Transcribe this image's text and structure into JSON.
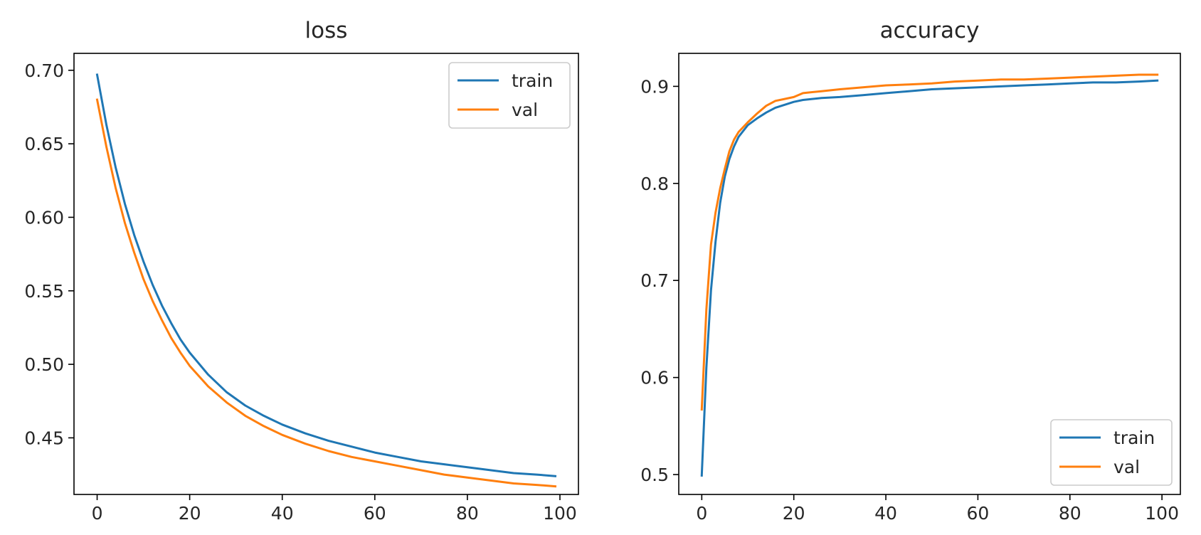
{
  "colors": {
    "train": "#1f77b4",
    "val": "#ff7f0e"
  },
  "chart_data": [
    {
      "type": "line",
      "title": "loss",
      "xlabel": "",
      "ylabel": "",
      "xlim": [
        -5,
        104
      ],
      "ylim": [
        0.4115,
        0.7115
      ],
      "xticks": [
        0,
        20,
        40,
        60,
        80,
        100
      ],
      "yticks": [
        0.45,
        0.5,
        0.55,
        0.6,
        0.65,
        0.7
      ],
      "ytick_labels": [
        "0.45",
        "0.50",
        "0.55",
        "0.60",
        "0.65",
        "0.70"
      ],
      "grid": false,
      "legend": "upper right",
      "x": [
        0,
        2,
        4,
        6,
        8,
        10,
        12,
        14,
        16,
        18,
        20,
        24,
        28,
        32,
        36,
        40,
        45,
        50,
        55,
        60,
        65,
        70,
        75,
        80,
        85,
        90,
        95,
        99
      ],
      "series": [
        {
          "name": "train",
          "values": [
            0.697,
            0.663,
            0.634,
            0.609,
            0.588,
            0.57,
            0.554,
            0.54,
            0.528,
            0.517,
            0.508,
            0.493,
            0.481,
            0.472,
            0.465,
            0.459,
            0.453,
            0.448,
            0.444,
            0.44,
            0.437,
            0.434,
            0.432,
            0.43,
            0.428,
            0.426,
            0.425,
            0.424
          ]
        },
        {
          "name": "val",
          "values": [
            0.68,
            0.648,
            0.62,
            0.596,
            0.576,
            0.558,
            0.543,
            0.53,
            0.518,
            0.508,
            0.499,
            0.485,
            0.474,
            0.465,
            0.458,
            0.452,
            0.446,
            0.441,
            0.437,
            0.434,
            0.431,
            0.428,
            0.425,
            0.423,
            0.421,
            0.419,
            0.418,
            0.417
          ]
        }
      ]
    },
    {
      "type": "line",
      "title": "accuracy",
      "xlabel": "",
      "ylabel": "",
      "xlim": [
        -5,
        104
      ],
      "ylim": [
        0.4795,
        0.934
      ],
      "xticks": [
        0,
        20,
        40,
        60,
        80,
        100
      ],
      "yticks": [
        0.5,
        0.6,
        0.7,
        0.8,
        0.9
      ],
      "ytick_labels": [
        "0.5",
        "0.6",
        "0.7",
        "0.8",
        "0.9"
      ],
      "grid": false,
      "legend": "lower right",
      "x": [
        0,
        1,
        2,
        3,
        4,
        5,
        6,
        7,
        8,
        10,
        12,
        14,
        16,
        18,
        20,
        22,
        26,
        30,
        35,
        40,
        45,
        50,
        55,
        60,
        65,
        70,
        75,
        80,
        85,
        90,
        95,
        99
      ],
      "series": [
        {
          "name": "train",
          "values": [
            0.499,
            0.61,
            0.69,
            0.74,
            0.78,
            0.807,
            0.825,
            0.838,
            0.848,
            0.86,
            0.867,
            0.873,
            0.878,
            0.881,
            0.884,
            0.886,
            0.888,
            0.889,
            0.891,
            0.893,
            0.895,
            0.897,
            0.898,
            0.899,
            0.9,
            0.901,
            0.902,
            0.903,
            0.904,
            0.904,
            0.905,
            0.906
          ]
        },
        {
          "name": "val",
          "values": [
            0.567,
            0.67,
            0.737,
            0.77,
            0.795,
            0.815,
            0.833,
            0.845,
            0.853,
            0.863,
            0.872,
            0.88,
            0.885,
            0.887,
            0.889,
            0.893,
            0.895,
            0.897,
            0.899,
            0.901,
            0.902,
            0.903,
            0.905,
            0.906,
            0.907,
            0.907,
            0.908,
            0.909,
            0.91,
            0.911,
            0.912,
            0.912
          ]
        }
      ]
    }
  ]
}
